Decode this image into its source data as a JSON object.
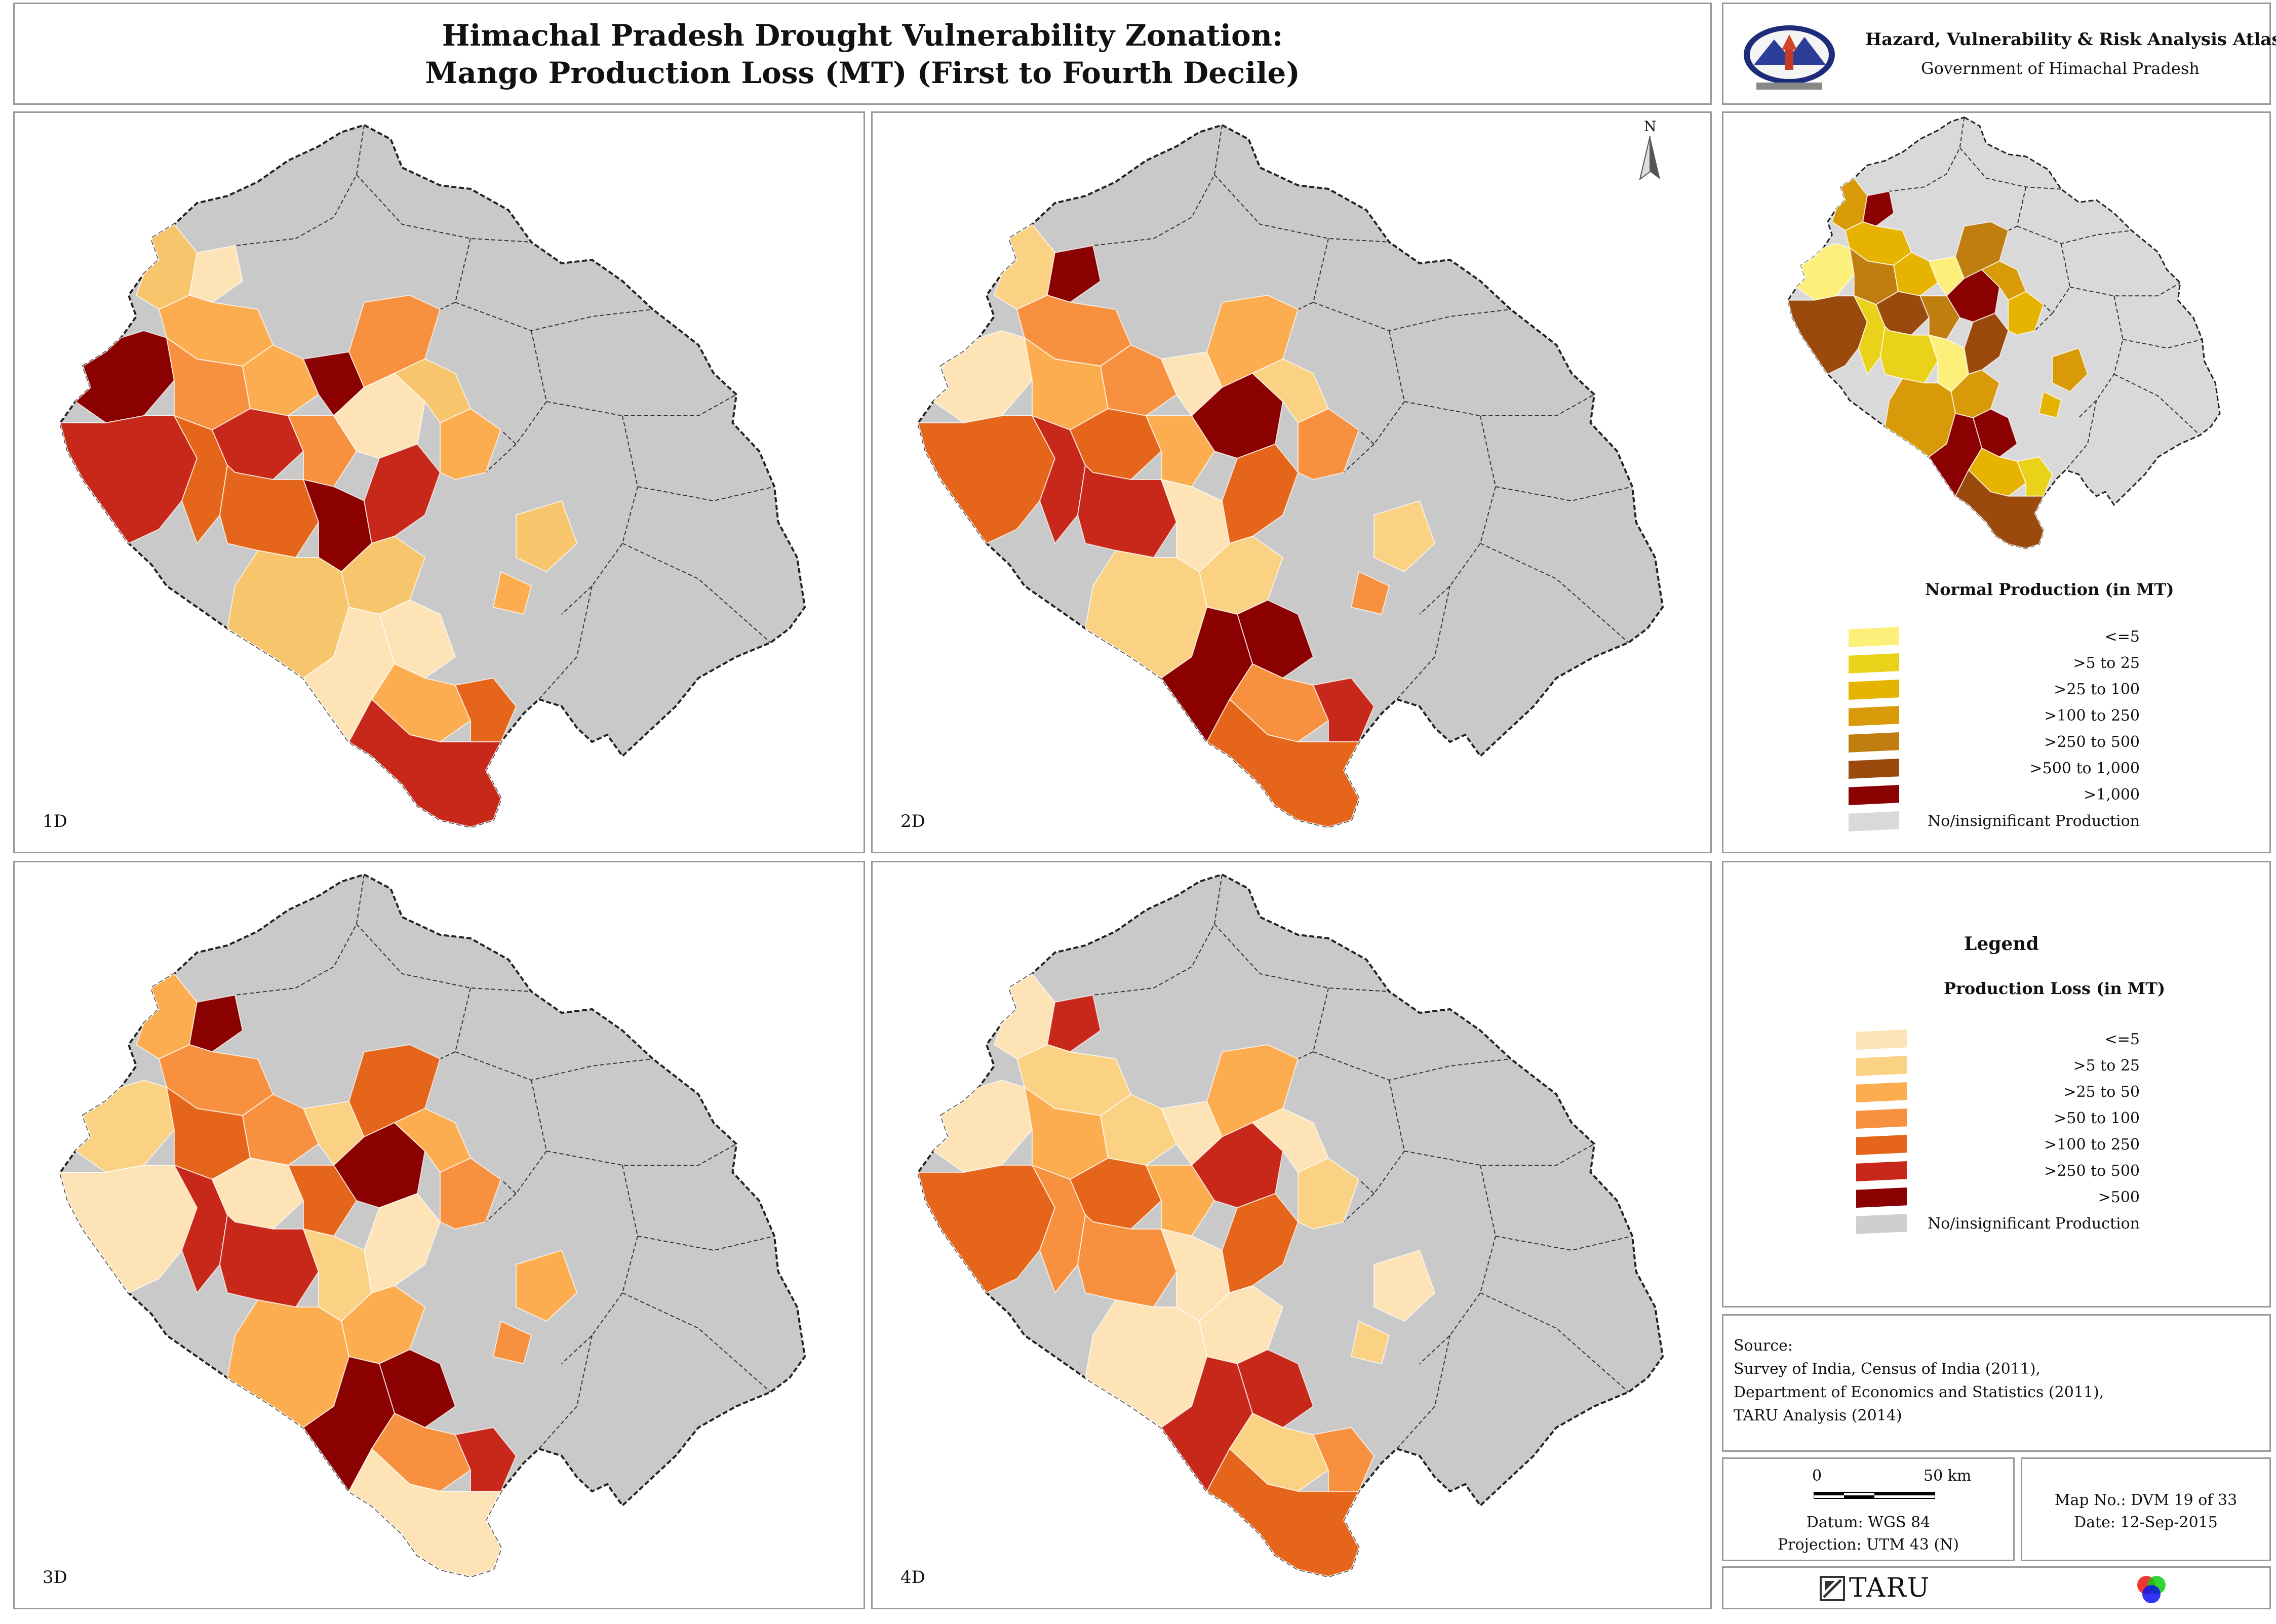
{
  "title": {
    "line1": "Himachal Pradesh Drought Vulnerability Zonation:",
    "line2": "Mango Production Loss (MT) (First to Fourth Decile)"
  },
  "atlas": {
    "heading": "Hazard, Vulnerability & Risk Analysis Atlas",
    "subheading": "Government of Himachal Pradesh",
    "emblem_icon": "state-emblem"
  },
  "maps": [
    {
      "label": "1D",
      "palette": [
        "#f7c56b",
        "#fbad50",
        "#f7913f",
        "#e5661a",
        "#c8281a",
        "#8b0000",
        "#fde3b5"
      ]
    },
    {
      "label": "2D",
      "palette": [
        "#fbd283",
        "#f7913f",
        "#fbad50",
        "#c8281a",
        "#e5661a",
        "#fde3b5",
        "#8b0000"
      ]
    },
    {
      "label": "3D",
      "palette": [
        "#fbad50",
        "#f7913f",
        "#e5661a",
        "#c8281a",
        "#fde3b5",
        "#fbd283",
        "#8b0000"
      ]
    },
    {
      "label": "4D",
      "palette": [
        "#fde3b5",
        "#fbd283",
        "#fbad50",
        "#f7913f",
        "#e5661a",
        "#fde3b5",
        "#c8281a"
      ]
    }
  ],
  "north_arrow_label": "N",
  "normal_production": {
    "title": "Normal Production (in MT)",
    "classes": [
      {
        "label": "<=5",
        "color": "#fdf07a"
      },
      {
        "label": ">5 to 25",
        "color": "#ead21a"
      },
      {
        "label": ">25 to 100",
        "color": "#e6b400"
      },
      {
        "label": ">100 to 250",
        "color": "#d99a0a"
      },
      {
        "label": ">250 to 500",
        "color": "#c07d10"
      },
      {
        "label": ">500 to 1,000",
        "color": "#9a4a0c"
      },
      {
        "label": ">1,000",
        "color": "#8b0000"
      },
      {
        "label": "No/insignificant Production",
        "color": "#d9d9d9"
      }
    ]
  },
  "legend": {
    "heading": "Legend",
    "title": "Production Loss (in MT)",
    "classes": [
      {
        "label": "<=5",
        "color": "#fde3b5"
      },
      {
        "label": ">5 to 25",
        "color": "#fbd283"
      },
      {
        "label": ">25 to 50",
        "color": "#fbad50"
      },
      {
        "label": ">50 to 100",
        "color": "#f7913f"
      },
      {
        "label": ">100 to 250",
        "color": "#e5661a"
      },
      {
        "label": ">250 to 500",
        "color": "#c8281a"
      },
      {
        "label": ">500",
        "color": "#8b0000"
      },
      {
        "label": "No/insignificant Production",
        "color": "#cfcfcf"
      }
    ]
  },
  "source": {
    "heading": "Source:",
    "lines": [
      "Survey of India, Census of India (2011),",
      "Department of Economics and Statistics (2011),",
      "TARU Analysis (2014)"
    ]
  },
  "scale": {
    "start": "0",
    "end": "50 km",
    "datum": "Datum: WGS 84",
    "projection": "Projection: UTM 43 (N)"
  },
  "map_info": {
    "map_no": "Map No.: DVM 19 of 33",
    "date": "Date: 12-Sep-2015"
  },
  "footer": {
    "brand": "TARU",
    "partner_icon": "tri-circle-logo"
  },
  "colors": {
    "no_production": "#c9c9c9",
    "border": "#9a9a9a"
  }
}
